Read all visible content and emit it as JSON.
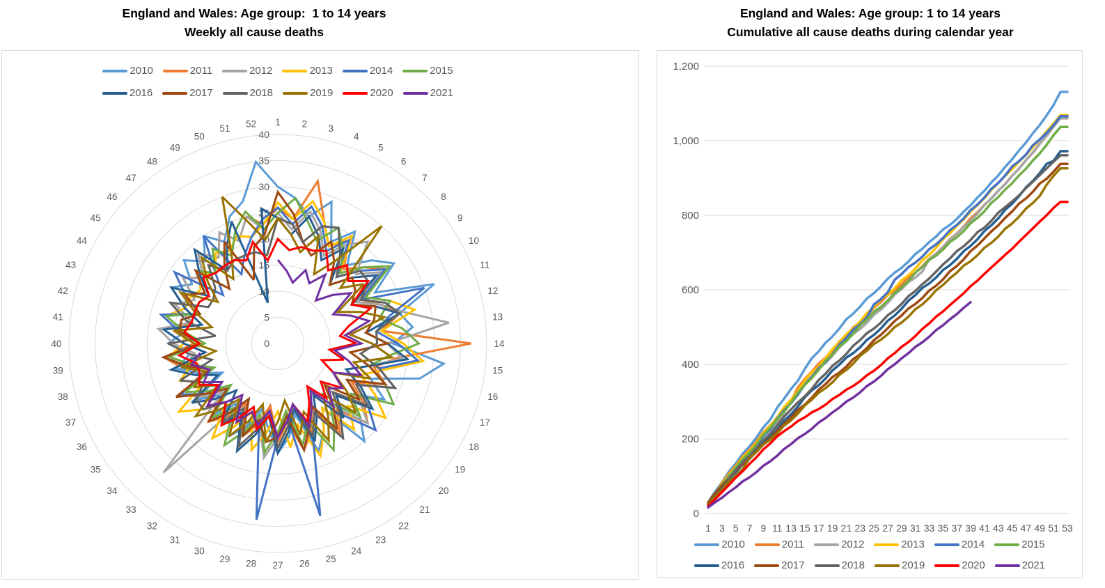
{
  "left_chart": {
    "title1": "England and Wales: Age group:  1 to 14 years",
    "title2": "Weekly all cause deaths"
  },
  "right_chart": {
    "title1": "England and Wales: Age group: 1 to 14 years",
    "title2": "Cumulative all cause deaths during calendar year"
  },
  "style_colors": {
    "grid": "#D9D9D9",
    "axis_text": "#595959",
    "title_text": "#000000"
  },
  "chart_data": [
    {
      "type": "radar",
      "title": "England and Wales: Age group:  1 to 14 years — Weekly all cause deaths",
      "categories": [
        1,
        2,
        3,
        4,
        5,
        6,
        7,
        8,
        9,
        10,
        11,
        12,
        13,
        14,
        15,
        16,
        17,
        18,
        19,
        20,
        21,
        22,
        23,
        24,
        25,
        26,
        27,
        28,
        29,
        30,
        31,
        32,
        33,
        34,
        35,
        36,
        37,
        38,
        39,
        40,
        41,
        42,
        43,
        44,
        45,
        46,
        47,
        48,
        49,
        50,
        51,
        52
      ],
      "radial_axis": {
        "min": 0,
        "max": 40,
        "step": 5,
        "tick_labels": [
          "0",
          "5",
          "10",
          "15",
          "20",
          "25",
          "30",
          "35",
          "40"
        ]
      },
      "legend_position": "top",
      "grid": true,
      "series": [
        {
          "name": "2010",
          "color": "#5B9BD5",
          "values": [
            30,
            28,
            25,
            29,
            22,
            26,
            20,
            24,
            27,
            21,
            32,
            24,
            26,
            22,
            32,
            28,
            19,
            23,
            17,
            21,
            25,
            15,
            19,
            22,
            14,
            18,
            21,
            16,
            13,
            17,
            20,
            14,
            18,
            15,
            19,
            12,
            16,
            20,
            17,
            21,
            18,
            22,
            19,
            23,
            20,
            24,
            21,
            25,
            22,
            26,
            28,
            35
          ]
        },
        {
          "name": "2011",
          "color": "#ED7D31",
          "values": [
            26,
            24,
            32,
            25,
            21,
            24,
            19,
            22,
            25,
            18,
            21,
            24,
            20,
            37,
            23,
            19,
            22,
            16,
            20,
            23,
            17,
            21,
            14,
            18,
            21,
            15,
            19,
            12,
            16,
            19,
            13,
            17,
            20,
            14,
            18,
            21,
            15,
            19,
            22,
            16,
            20,
            17,
            21,
            18,
            22,
            19,
            23,
            20,
            24,
            21,
            25,
            23
          ]
        },
        {
          "name": "2012",
          "color": "#A5A5A5",
          "values": [
            25,
            22,
            26,
            23,
            19,
            23,
            26,
            20,
            24,
            17,
            21,
            25,
            33,
            21,
            24,
            18,
            22,
            15,
            19,
            23,
            16,
            20,
            13,
            17,
            21,
            14,
            18,
            22,
            15,
            19,
            12,
            16,
            33,
            14,
            18,
            21,
            15,
            19,
            16,
            20,
            23,
            17,
            21,
            18,
            22,
            19,
            23,
            20,
            24,
            21,
            25,
            22
          ]
        },
        {
          "name": "2013",
          "color": "#FFC000",
          "values": [
            27,
            24,
            28,
            25,
            21,
            25,
            18,
            22,
            26,
            19,
            23,
            27,
            20,
            24,
            28,
            21,
            17,
            21,
            25,
            18,
            22,
            15,
            19,
            23,
            16,
            20,
            13,
            17,
            21,
            14,
            18,
            22,
            15,
            19,
            23,
            16,
            20,
            17,
            21,
            18,
            18,
            22,
            19,
            19,
            18,
            20,
            18,
            21,
            20,
            22,
            21,
            23
          ]
        },
        {
          "name": "2014",
          "color": "#4472C4",
          "values": [
            26,
            23,
            27,
            24,
            20,
            24,
            17,
            21,
            25,
            18,
            30,
            22,
            19,
            23,
            27,
            20,
            24,
            17,
            21,
            25,
            18,
            22,
            15,
            19,
            34,
            14,
            18,
            34,
            15,
            19,
            12,
            16,
            20,
            13,
            17,
            21,
            14,
            18,
            22,
            15,
            19,
            23,
            16,
            20,
            24,
            14,
            18,
            25,
            15,
            18,
            21,
            24
          ]
        },
        {
          "name": "2015",
          "color": "#70AD47",
          "values": [
            25,
            28,
            24,
            21,
            25,
            22,
            18,
            22,
            26,
            19,
            23,
            20,
            24,
            27,
            21,
            18,
            22,
            25,
            17,
            21,
            15,
            19,
            23,
            16,
            20,
            13,
            17,
            21,
            14,
            18,
            22,
            15,
            19,
            12,
            16,
            20,
            13,
            17,
            21,
            14,
            18,
            22,
            16,
            20,
            17,
            21,
            18,
            22,
            19,
            23,
            26,
            22
          ]
        },
        {
          "name": "2016",
          "color": "#255E91",
          "values": [
            24,
            21,
            25,
            22,
            18,
            22,
            15,
            19,
            23,
            16,
            20,
            24,
            17,
            21,
            25,
            18,
            14,
            18,
            22,
            15,
            19,
            12,
            16,
            20,
            13,
            17,
            21,
            14,
            18,
            22,
            15,
            19,
            12,
            16,
            20,
            13,
            17,
            21,
            14,
            18,
            22,
            15,
            19,
            23,
            16,
            20,
            24,
            17,
            21,
            25,
            8,
            26
          ]
        },
        {
          "name": "2017",
          "color": "#9E480E",
          "values": [
            29,
            25,
            20,
            18,
            22,
            19,
            15,
            19,
            18,
            16,
            20,
            19,
            17,
            21,
            14,
            18,
            22,
            15,
            19,
            12,
            16,
            20,
            13,
            17,
            21,
            14,
            18,
            19,
            15,
            19,
            12,
            16,
            20,
            13,
            17,
            22,
            14,
            18,
            22,
            15,
            19,
            19,
            16,
            20,
            17,
            21,
            14,
            18,
            22,
            13,
            19,
            21
          ]
        },
        {
          "name": "2018",
          "color": "#636363",
          "values": [
            24,
            23,
            20,
            24,
            25,
            21,
            17,
            21,
            21,
            18,
            22,
            24,
            19,
            19,
            16,
            20,
            24,
            17,
            21,
            14,
            18,
            22,
            15,
            19,
            12,
            16,
            20,
            13,
            17,
            21,
            14,
            18,
            15,
            19,
            19,
            16,
            20,
            13,
            17,
            21,
            12,
            18,
            22,
            15,
            15,
            16,
            20,
            17,
            18,
            18,
            18,
            17
          ]
        },
        {
          "name": "2019",
          "color": "#997300",
          "values": [
            24,
            21,
            18,
            22,
            15,
            19,
            30,
            16,
            20,
            13,
            17,
            21,
            14,
            18,
            22,
            15,
            19,
            12,
            16,
            20,
            13,
            17,
            21,
            14,
            18,
            11,
            15,
            19,
            12,
            16,
            20,
            13,
            17,
            21,
            14,
            18,
            15,
            19,
            12,
            16,
            20,
            13,
            17,
            21,
            14,
            18,
            22,
            15,
            19,
            30,
            24,
            20
          ]
        },
        {
          "name": "2020",
          "color": "#FF0000",
          "values": [
            20,
            18,
            19,
            19,
            20,
            17,
            20,
            18,
            21,
            16,
            19,
            14,
            12,
            15,
            10,
            13,
            9,
            12,
            15,
            11,
            14,
            10,
            13,
            16,
            12,
            15,
            18,
            14,
            17,
            13,
            16,
            19,
            15,
            18,
            14,
            17,
            16,
            16,
            19,
            15,
            18,
            17,
            17,
            17,
            16,
            19,
            18,
            18,
            18,
            17,
            20,
            16
          ]
        },
        {
          "name": "2021",
          "color": "#7030A0",
          "values": [
            16,
            14,
            12,
            15,
            13,
            16,
            11,
            14,
            17,
            12,
            15,
            18,
            13,
            16,
            11,
            14,
            17,
            12,
            15,
            13,
            16,
            11,
            14,
            17,
            12,
            15,
            18,
            13,
            16,
            14,
            17,
            12,
            15,
            18,
            13,
            16,
            14,
            17,
            15
          ]
        }
      ]
    },
    {
      "type": "line",
      "title": "England and Wales: Age group: 1 to 14 years — Cumulative all cause deaths during calendar year",
      "x_axis": {
        "min": 1,
        "max": 53,
        "tick_labels": [
          "1",
          "3",
          "5",
          "7",
          "9",
          "11",
          "13",
          "15",
          "17",
          "19",
          "21",
          "23",
          "25",
          "27",
          "29",
          "31",
          "33",
          "35",
          "37",
          "39",
          "41",
          "43",
          "45",
          "47",
          "49",
          "51",
          "53"
        ]
      },
      "y_axis": {
        "min": 0,
        "max": 1200,
        "step": 200,
        "tick_labels": [
          "0",
          "200",
          "400",
          "600",
          "800",
          "1,000",
          "1,200"
        ]
      },
      "legend_position": "bottom",
      "grid": true,
      "derivation": "Each series is the running cumulative sum of the weekly values in chart_data[0]; 52-week series plateau at week 53.",
      "series": [
        {
          "name": "2010",
          "color": "#5B9BD5",
          "end_week": 53,
          "end_value": 1131
        },
        {
          "name": "2011",
          "color": "#ED7D31",
          "end_week": 53,
          "end_value": 1061
        },
        {
          "name": "2012",
          "color": "#A5A5A5",
          "end_week": 53,
          "end_value": 1060
        },
        {
          "name": "2013",
          "color": "#FFC000",
          "end_week": 53,
          "end_value": 1069
        },
        {
          "name": "2014",
          "color": "#4472C4",
          "end_week": 53,
          "end_value": 1066
        },
        {
          "name": "2015",
          "color": "#70AD47",
          "end_week": 53,
          "end_value": 1037
        },
        {
          "name": "2016",
          "color": "#255E91",
          "end_week": 53,
          "end_value": 972
        },
        {
          "name": "2017",
          "color": "#9E480E",
          "end_week": 53,
          "end_value": 938
        },
        {
          "name": "2018",
          "color": "#636363",
          "end_week": 53,
          "end_value": 961
        },
        {
          "name": "2019",
          "color": "#997300",
          "end_week": 53,
          "end_value": 926
        },
        {
          "name": "2020",
          "color": "#FF0000",
          "end_week": 53,
          "end_value": 836
        },
        {
          "name": "2021",
          "color": "#7030A0",
          "end_week": 39,
          "end_value": 567
        }
      ]
    }
  ]
}
